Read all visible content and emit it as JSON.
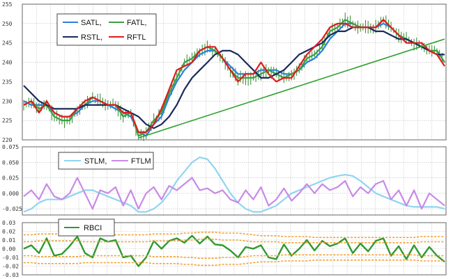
{
  "chart_data": [
    {
      "type": "line",
      "title": "",
      "ylim": [
        220,
        255
      ],
      "y_ticks": [
        "255",
        "250",
        "245",
        "240",
        "235",
        "230",
        "225",
        "220"
      ],
      "grid": true,
      "legend_position": "top-left",
      "legend": [
        "SATL,",
        "FATL,",
        "RSTL,",
        "RFTL"
      ],
      "colors": {
        "price": "#2e8b2e",
        "SATL": "#2a7fdc",
        "FATL": "#3aa040",
        "RSTL": "#1a2a5a",
        "RFTL": "#e01b1b",
        "trendline": "#2fa02f"
      },
      "bars": "OHLC price bars",
      "series": [
        {
          "name": "SATL",
          "values": [
            230,
            229,
            229,
            229,
            227,
            226,
            226,
            227,
            229,
            230,
            230,
            229,
            228,
            227,
            226,
            222,
            221,
            224,
            226,
            231,
            235,
            238,
            240,
            242,
            243,
            243,
            241,
            239,
            237,
            237,
            237,
            238,
            238,
            238,
            237,
            237,
            238,
            240,
            241,
            243,
            246,
            248,
            250,
            250,
            249,
            249,
            249,
            250,
            249,
            247,
            246,
            245,
            244,
            243,
            243,
            240
          ]
        },
        {
          "name": "FATL",
          "values": [
            229,
            230,
            228,
            229,
            226,
            225,
            225,
            228,
            229,
            231,
            230,
            229,
            229,
            226,
            227,
            221,
            222,
            225,
            227,
            232,
            236,
            240,
            241,
            243,
            244,
            243,
            241,
            238,
            236,
            236,
            236,
            237,
            238,
            237,
            236,
            237,
            238,
            241,
            242,
            244,
            248,
            249,
            251,
            250,
            249,
            249,
            249,
            251,
            249,
            247,
            246,
            245,
            244,
            243,
            243,
            240
          ]
        },
        {
          "name": "RSTL",
          "values": [
            234,
            232,
            230,
            229,
            228,
            228,
            228,
            228,
            229,
            229,
            229,
            229,
            229,
            228,
            227,
            226,
            224,
            223,
            224,
            226,
            229,
            233,
            236,
            238,
            240,
            242,
            243,
            243,
            242,
            240,
            238,
            236,
            236,
            237,
            238,
            240,
            242,
            243,
            244,
            245,
            247,
            248,
            248,
            249,
            249,
            249,
            248,
            248,
            247,
            246,
            246,
            245,
            244,
            243,
            242,
            242
          ]
        },
        {
          "name": "RFTL",
          "values": [
            229,
            230,
            227,
            230,
            227,
            226,
            226,
            228,
            230,
            231,
            230,
            229,
            229,
            227,
            227,
            222,
            222,
            224,
            228,
            233,
            238,
            239,
            240,
            243,
            244,
            244,
            241,
            238,
            235,
            237,
            237,
            240,
            237,
            235,
            236,
            236,
            239,
            242,
            244,
            246,
            249,
            250,
            250,
            249,
            249,
            249,
            249,
            251,
            249,
            247,
            245,
            245,
            245,
            243,
            242,
            239
          ]
        },
        {
          "name": "trendline",
          "values": [
            [
              15,
              220.5
            ],
            [
              55,
              246
            ]
          ]
        }
      ]
    },
    {
      "type": "line",
      "title": "",
      "ylim": [
        -0.035,
        0.075
      ],
      "y_ticks": [
        "0.075",
        "0.050",
        "0.025",
        "0.000",
        "-0.025"
      ],
      "grid": true,
      "legend": [
        "STLM,",
        "FTLM"
      ],
      "colors": {
        "STLM": "#8fd6ef",
        "FTLM": "#c88ae6"
      },
      "series": [
        {
          "name": "STLM",
          "values": [
            -0.03,
            -0.025,
            -0.015,
            -0.01,
            -0.01,
            -0.01,
            -0.005,
            0.0,
            0.005,
            0.005,
            0.0,
            -0.005,
            -0.01,
            -0.015,
            -0.02,
            -0.03,
            -0.03,
            -0.025,
            -0.015,
            0.0,
            0.02,
            0.035,
            0.05,
            0.058,
            0.055,
            0.04,
            0.02,
            0.0,
            -0.015,
            -0.025,
            -0.03,
            -0.03,
            -0.025,
            -0.02,
            -0.01,
            0.0,
            0.005,
            0.01,
            0.015,
            0.02,
            0.025,
            0.028,
            0.03,
            0.028,
            0.02,
            0.01,
            0.0,
            -0.005,
            -0.01,
            -0.015,
            -0.02,
            -0.022,
            -0.022,
            -0.022,
            -0.022,
            -0.025
          ]
        },
        {
          "name": "FTLM",
          "values": [
            -0.005,
            0.005,
            -0.01,
            0.015,
            -0.005,
            -0.01,
            0.0,
            0.025,
            0.0,
            -0.025,
            0.005,
            0.0,
            0.01,
            -0.02,
            0.005,
            -0.025,
            0.0,
            0.01,
            -0.01,
            0.012,
            0.005,
            0.015,
            0.025,
            0.005,
            0.008,
            0.0,
            0.005,
            -0.01,
            -0.015,
            0.005,
            -0.01,
            0.01,
            -0.02,
            -0.01,
            0.008,
            -0.012,
            0.0,
            0.015,
            0.0,
            0.015,
            0.005,
            0.01,
            0.02,
            -0.005,
            0.01,
            0.0,
            0.015,
            0.02,
            -0.01,
            0.005,
            -0.02,
            0.005,
            -0.025,
            0.0,
            -0.01,
            -0.02
          ]
        }
      ]
    },
    {
      "type": "line",
      "title": "",
      "ylim": [
        -0.03,
        0.03
      ],
      "y_ticks": [
        "0.03",
        "0.02",
        "0.01",
        "0.00",
        "-0.01",
        "-0.02",
        "-0.03"
      ],
      "grid": true,
      "legend": [
        "RBCI"
      ],
      "colors": {
        "RBCI": "#2e9a2e",
        "bands": "#f0a030"
      },
      "series": [
        {
          "name": "RBCI",
          "values": [
            0.0,
            0.004,
            -0.005,
            0.012,
            -0.008,
            -0.006,
            0.003,
            0.014,
            -0.005,
            -0.01,
            0.012,
            0.008,
            0.01,
            -0.01,
            -0.008,
            -0.02,
            -0.01,
            0.009,
            0.0,
            0.009,
            0.012,
            0.007,
            0.015,
            0.006,
            0.014,
            0.005,
            0.004,
            -0.002,
            -0.01,
            0.002,
            0.0,
            0.004,
            -0.01,
            -0.012,
            0.005,
            -0.008,
            0.0,
            0.01,
            -0.002,
            0.009,
            0.003,
            0.006,
            0.012,
            -0.005,
            0.006,
            -0.003,
            0.009,
            0.012,
            -0.008,
            0.003,
            -0.012,
            0.004,
            -0.01,
            0.002,
            -0.008,
            -0.015
          ]
        },
        {
          "name": "band-upper-2",
          "values": [
            0.016,
            0.016,
            0.017,
            0.017,
            0.017,
            0.017,
            0.017,
            0.017,
            0.016,
            0.016,
            0.016,
            0.016,
            0.016,
            0.016,
            0.016,
            0.016,
            0.016,
            0.017,
            0.017,
            0.017,
            0.017,
            0.018,
            0.018,
            0.019,
            0.019,
            0.019,
            0.018,
            0.018,
            0.018,
            0.017,
            0.016,
            0.015,
            0.015,
            0.015,
            0.014,
            0.014,
            0.014,
            0.014,
            0.013,
            0.013,
            0.013,
            0.013,
            0.013,
            0.013,
            0.013,
            0.013,
            0.013,
            0.013,
            0.013,
            0.013,
            0.013,
            0.013,
            0.014,
            0.014,
            0.014,
            0.014
          ]
        },
        {
          "name": "band-upper-1",
          "values": [
            0.008,
            0.008,
            0.009,
            0.009,
            0.009,
            0.009,
            0.009,
            0.009,
            0.008,
            0.008,
            0.008,
            0.008,
            0.008,
            0.008,
            0.008,
            0.008,
            0.008,
            0.009,
            0.009,
            0.009,
            0.009,
            0.01,
            0.01,
            0.011,
            0.011,
            0.011,
            0.01,
            0.01,
            0.01,
            0.009,
            0.008,
            0.008,
            0.008,
            0.008,
            0.007,
            0.007,
            0.007,
            0.007,
            0.007,
            0.007,
            0.007,
            0.007,
            0.007,
            0.007,
            0.007,
            0.007,
            0.007,
            0.007,
            0.007,
            0.007,
            0.007,
            0.007,
            0.008,
            0.008,
            0.008,
            0.008
          ]
        },
        {
          "name": "band-lower-1",
          "values": [
            -0.008,
            -0.008,
            -0.009,
            -0.009,
            -0.009,
            -0.009,
            -0.009,
            -0.009,
            -0.008,
            -0.008,
            -0.008,
            -0.008,
            -0.008,
            -0.008,
            -0.008,
            -0.008,
            -0.008,
            -0.009,
            -0.009,
            -0.009,
            -0.009,
            -0.01,
            -0.01,
            -0.011,
            -0.011,
            -0.011,
            -0.01,
            -0.01,
            -0.01,
            -0.009,
            -0.008,
            -0.008,
            -0.008,
            -0.008,
            -0.007,
            -0.007,
            -0.007,
            -0.007,
            -0.007,
            -0.007,
            -0.007,
            -0.007,
            -0.007,
            -0.007,
            -0.007,
            -0.007,
            -0.007,
            -0.007,
            -0.007,
            -0.007,
            -0.007,
            -0.007,
            -0.008,
            -0.008,
            -0.008,
            -0.008
          ]
        },
        {
          "name": "band-lower-2",
          "values": [
            -0.016,
            -0.016,
            -0.017,
            -0.017,
            -0.017,
            -0.017,
            -0.017,
            -0.017,
            -0.016,
            -0.016,
            -0.016,
            -0.016,
            -0.016,
            -0.016,
            -0.016,
            -0.016,
            -0.016,
            -0.017,
            -0.017,
            -0.017,
            -0.017,
            -0.018,
            -0.018,
            -0.019,
            -0.019,
            -0.019,
            -0.018,
            -0.018,
            -0.018,
            -0.017,
            -0.016,
            -0.015,
            -0.015,
            -0.015,
            -0.014,
            -0.014,
            -0.014,
            -0.014,
            -0.013,
            -0.013,
            -0.013,
            -0.013,
            -0.013,
            -0.013,
            -0.013,
            -0.013,
            -0.013,
            -0.013,
            -0.013,
            -0.013,
            -0.013,
            -0.013,
            -0.014,
            -0.014,
            -0.014,
            -0.014
          ]
        }
      ]
    }
  ]
}
